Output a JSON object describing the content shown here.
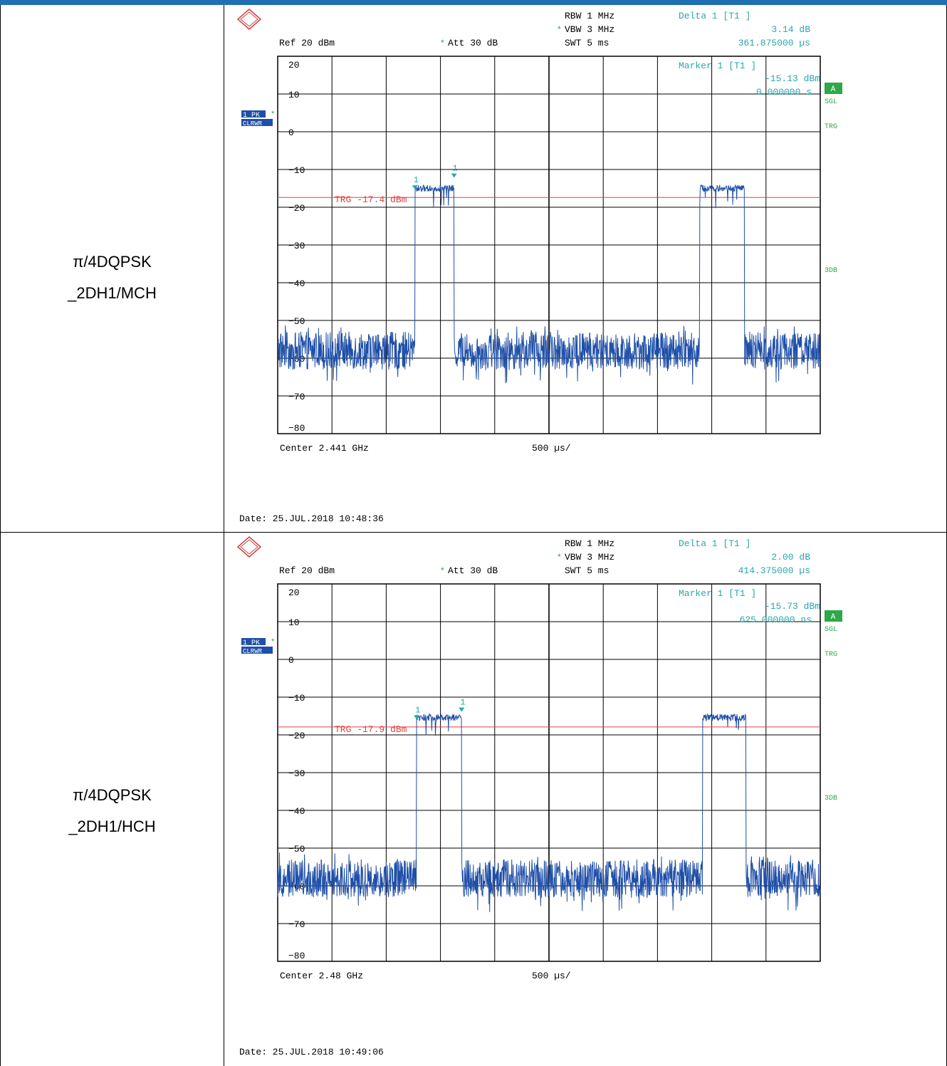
{
  "rows": [
    {
      "label_line1": "π/4DQPSK",
      "label_line2": "_2DH1/MCH",
      "instrument": {
        "rbw": "RBW 1 MHz",
        "vbw": "VBW 3 MHz",
        "swt": "SWT 5 ms",
        "ref": "Ref  20 dBm",
        "att": "Att  30 dB",
        "delta_title": "Delta 1 [T1 ]",
        "delta_value": "3.14 dB",
        "delta_time": "361.875000 µs",
        "marker_title": "Marker 1 [T1 ]",
        "marker_value": "-15.13 dBm",
        "marker_time": "0.000000 s",
        "trg_label": "TRG -17.4 dBm",
        "center": "Center 2.441 GHz",
        "span": "500 µs/",
        "date": "Date: 25.JUL.2018  10:48:36",
        "side_a": "A",
        "side_sgl": "SGL",
        "side_trg": "TRG",
        "side_3db": "3DB",
        "trace_badge_1": "1 PK",
        "trace_badge_2": "CLRWR",
        "marker_num": "1"
      },
      "chart_data": {
        "type": "line",
        "xlabel": "Center 2.441 GHz",
        "ylabel": "",
        "x_div": "500 µs/",
        "ylim": [
          -80,
          20
        ],
        "yticks": [
          20,
          10,
          0,
          -10,
          -20,
          -30,
          -40,
          -50,
          -60,
          -70,
          -80
        ],
        "trigger_level": -17.4,
        "noise_floor_range": [
          -67,
          -51
        ],
        "bursts": [
          {
            "start_div": 2.53,
            "end_div": 3.25,
            "level": -15.3
          },
          {
            "start_div": 7.78,
            "end_div": 8.6,
            "level": -15.3
          }
        ],
        "markers": [
          {
            "name": "1",
            "time_div": 2.53,
            "level": -15.13
          },
          {
            "name": "1",
            "time_div": 3.25,
            "level": -12.0
          }
        ]
      }
    },
    {
      "label_line1": "π/4DQPSK",
      "label_line2": "_2DH1/HCH",
      "instrument": {
        "rbw": "RBW 1 MHz",
        "vbw": "VBW 3 MHz",
        "swt": "SWT 5 ms",
        "ref": "Ref  20 dBm",
        "att": "Att  30 dB",
        "delta_title": "Delta 1 [T1 ]",
        "delta_value": "2.00 dB",
        "delta_time": "414.375000 µs",
        "marker_title": "Marker 1 [T1 ]",
        "marker_value": "-15.73 dBm",
        "marker_time": "625.000000 ns",
        "trg_label": "TRG -17.9 dBm",
        "center": "Center 2.48 GHz",
        "span": "500 µs/",
        "date": "Date: 25.JUL.2018  10:49:06",
        "side_a": "A",
        "side_sgl": "SGL",
        "side_trg": "TRG",
        "side_3db": "3DB",
        "trace_badge_1": "1 PK",
        "trace_badge_2": "CLRWR",
        "marker_num": "1"
      },
      "chart_data": {
        "type": "line",
        "xlabel": "Center 2.48 GHz",
        "ylabel": "",
        "x_div": "500 µs/",
        "ylim": [
          -80,
          20
        ],
        "yticks": [
          20,
          10,
          0,
          -10,
          -20,
          -30,
          -40,
          -50,
          -60,
          -70,
          -80
        ],
        "trigger_level": -17.9,
        "noise_floor_range": [
          -67,
          -51
        ],
        "bursts": [
          {
            "start_div": 2.56,
            "end_div": 3.39,
            "level": -15.7
          },
          {
            "start_div": 7.83,
            "end_div": 8.63,
            "level": -15.7
          }
        ],
        "markers": [
          {
            "name": "1",
            "time_div": 2.56,
            "level": -15.73
          },
          {
            "name": "1",
            "time_div": 3.39,
            "level": -13.7
          }
        ]
      }
    }
  ],
  "colors": {
    "trace": "#1f4fa8",
    "marker_text": "#2aa8a8",
    "trigger": "#e04040",
    "side_green": "#2ea84a",
    "badge": "#1f4fa8"
  }
}
